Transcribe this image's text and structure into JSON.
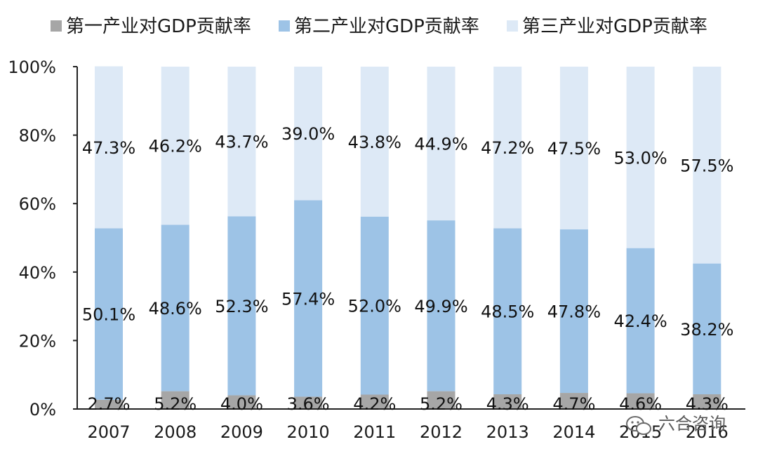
{
  "chart_data": {
    "type": "bar",
    "stacked": true,
    "title": "",
    "xlabel": "",
    "ylabel": "",
    "ylim": [
      0,
      100
    ],
    "yticks": [
      "0%",
      "20%",
      "40%",
      "60%",
      "80%",
      "100%"
    ],
    "categories": [
      "2007",
      "2008",
      "2009",
      "2010",
      "2011",
      "2012",
      "2013",
      "2014",
      "2015",
      "2016"
    ],
    "legend_position": "top",
    "series": [
      {
        "name": "第一产业对GDP贡献率",
        "color": "#a6a6a6",
        "values": [
          2.7,
          5.2,
          4.0,
          3.6,
          4.2,
          5.2,
          4.3,
          4.7,
          4.6,
          4.3
        ],
        "labels": [
          "2.7%",
          "5.2%",
          "4.0%",
          "3.6%",
          "4.2%",
          "5.2%",
          "4.3%",
          "4.7%",
          "4.6%",
          "4.3%"
        ]
      },
      {
        "name": "第二产业对GDP贡献率",
        "color": "#9dc3e6",
        "values": [
          50.1,
          48.6,
          52.3,
          57.4,
          52.0,
          49.9,
          48.5,
          47.8,
          42.4,
          38.2
        ],
        "labels": [
          "50.1%",
          "48.6%",
          "52.3%",
          "57.4%",
          "52.0%",
          "49.9%",
          "48.5%",
          "47.8%",
          "42.4%",
          "38.2%"
        ]
      },
      {
        "name": "第三产业对GDP贡献率",
        "color": "#dde9f6",
        "values": [
          47.3,
          46.2,
          43.7,
          39.0,
          43.8,
          44.9,
          47.2,
          47.5,
          53.0,
          57.5
        ],
        "labels": [
          "47.3%",
          "46.2%",
          "43.7%",
          "39.0%",
          "43.8%",
          "44.9%",
          "47.2%",
          "47.5%",
          "53.0%",
          "57.5%"
        ]
      }
    ]
  },
  "watermark": {
    "icon": "wechat-icon",
    "text": "六合咨询"
  }
}
